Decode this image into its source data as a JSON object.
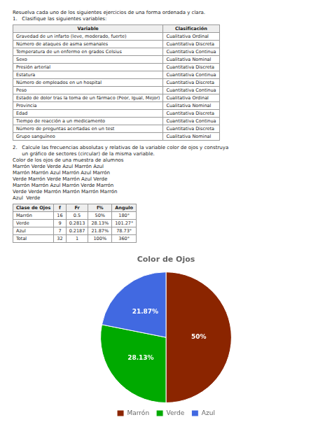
{
  "chart_data": {
    "type": "pie",
    "title": "Color de Ojos",
    "categories": [
      "Marrón",
      "Verde",
      "Azul"
    ],
    "values": [
      50,
      28.13,
      21.87
    ],
    "value_labels": [
      "50%",
      "28.13%",
      "21.87%"
    ],
    "colors": [
      "#8B2500",
      "#00AA00",
      "#4169E1"
    ],
    "data_labels": true,
    "legend": "bottom",
    "annotations": [
      "Resuelva cada uno de los siguientes ejercicios de una forma ordenada y clara.",
      "1.   Clasifique las siguientes variables:",
      [
        [
          "Variable",
          "Clasificación"
        ],
        [
          "Gravedad de un infarto (leve, moderado, fuerte)",
          "Cualitativa Ordinal"
        ],
        [
          "Número de ataques de asma semanales",
          "Cuantitativa Discreta"
        ],
        [
          "Temperatura de un enfermo en grados Celsius",
          "Cuantitativa Continua"
        ],
        [
          "Sexo",
          "Cualitativa Nominal"
        ],
        [
          "Presión arterial",
          "Cuantitativa Discreta"
        ],
        [
          "Estatura",
          "Cuantitativa Continua"
        ],
        [
          "Número de empleados en un hospital",
          "Cuantitativa Discreta"
        ],
        [
          "Peso",
          "Cuantitativa Continua"
        ],
        [
          "Estado de dolor tras la toma de un fármaco (Peor, Igual, Mejor)",
          "Cualitativa Ordinal"
        ],
        [
          "Provincia",
          "Cualitativa Nominal"
        ],
        [
          "Edad",
          "Cuantitativa Discreta"
        ],
        [
          "Tiempo de reacción a un medicamento",
          "Cuantitativa Continua"
        ],
        [
          "Número de preguntas acertadas en un test",
          "Cuantitativa Discreta"
        ],
        [
          "Grupo sanguíneo",
          "Cualitativa Nominal"
        ]
      ],
      "2.   Calcule las frecuencias absolutas y relativas de la variable color de ojos y construya",
      "      un gráfico de sectores (circular) de la misma variable.",
      "Color de los ojos de una muestra de alumnos",
      "Marrón Verde Verde Azul Marrón Azul",
      "Marrón Marrón Azul Marrón Azul Marrón",
      "Verde Marrón Verde Marrón Azul Verde",
      "Marrón Marrón Azul Marrón Verde Marrón",
      "Verde Verde Marrón Marrón Marrón Marrón",
      "Azul  Verde",
      [
        [
          "Clase de Ojos",
          "f",
          "Fr",
          "f%",
          "Angulo"
        ],
        [
          "Marrón",
          "16",
          "0.5",
          "50%",
          "180°"
        ],
        [
          "Verde",
          "9",
          "0.2813",
          "28.13%",
          "101.27°"
        ],
        [
          "Azul",
          "7",
          "0.2187",
          "21.87%",
          "78.73°"
        ],
        [
          "Total",
          "32",
          "1",
          "100%",
          "360°"
        ]
      ]
    ]
  }
}
